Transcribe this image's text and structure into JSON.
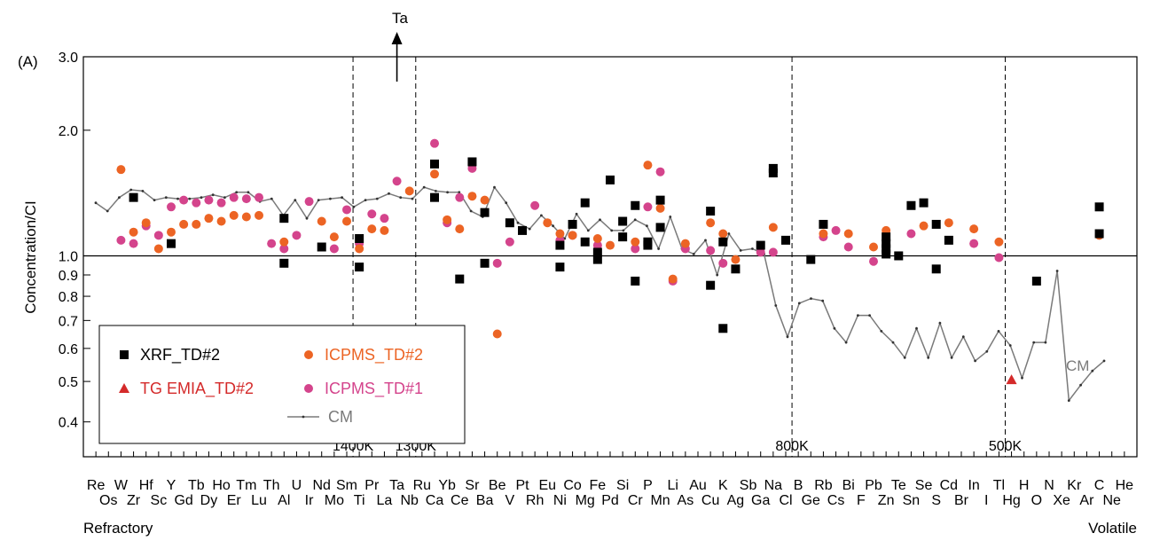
{
  "chart_data": {
    "type": "scatter",
    "panel_label": "(A)",
    "ylabel": "Concentration/CI",
    "y_scale": "log",
    "ylim": [
      0.33,
      3.0
    ],
    "y_ticks": [
      {
        "value": 3.0,
        "label": "3.0"
      },
      {
        "value": 2.0,
        "label": "2.0"
      },
      {
        "value": 1.0,
        "label": "1.0"
      },
      {
        "value": 0.9,
        "label": "0.9"
      },
      {
        "value": 0.8,
        "label": "0.8"
      },
      {
        "value": 0.7,
        "label": "0.7"
      },
      {
        "value": 0.6,
        "label": "0.6"
      },
      {
        "value": 0.5,
        "label": "0.5"
      },
      {
        "value": 0.4,
        "label": "0.4"
      }
    ],
    "reference_line": 1.0,
    "x_top_row": [
      "Re",
      "W",
      "Hf",
      "Y",
      "Tb",
      "Ho",
      "Tm",
      "Th",
      "U",
      "Nd",
      "Sm",
      "Pr",
      "Ta",
      "Ru",
      "Yb",
      "Sr",
      "Be",
      "Pt",
      "Eu",
      "Co",
      "Fe",
      "Si",
      "P",
      "Li",
      "Au",
      "K",
      "Sb",
      "Na",
      "B",
      "Rb",
      "Bi",
      "Pb",
      "Te",
      "Se",
      "Cd",
      "In",
      "Tl",
      "H",
      "N",
      "Kr",
      "C",
      "He"
    ],
    "x_bottom_row": [
      "Os",
      "Zr",
      "Sc",
      "Gd",
      "Dy",
      "Er",
      "Lu",
      "Al",
      "Ir",
      "Mo",
      "Ti",
      "La",
      "Nb",
      "Ca",
      "Ce",
      "Ba",
      "V",
      "Rh",
      "Ni",
      "Mg",
      "Pd",
      "Cr",
      "Mn",
      "As",
      "Cu",
      "Ag",
      "Ga",
      "Cl",
      "Ge",
      "Cs",
      "F",
      "Zn",
      "Sn",
      "S",
      "Br",
      "I",
      "Hg",
      "O",
      "Xe",
      "Ar",
      "Ne"
    ],
    "x_left_label": "Refractory",
    "x_right_label": "Volatile",
    "temperature_markers": [
      {
        "label": "1400K",
        "after_index": 20
      },
      {
        "label": "1300K",
        "after_index": 25
      },
      {
        "label": "800K",
        "after_index": 55
      },
      {
        "label": "500K",
        "after_index": 72
      }
    ],
    "arrow_annotation": {
      "label": "Ta",
      "element": "Ta"
    },
    "line_label": "CM",
    "legend": [
      {
        "name": "XRF_TD#2",
        "marker": "square",
        "color": "#000000"
      },
      {
        "name": "TG EMIA_TD#2",
        "marker": "triangle",
        "color": "#d42a2a"
      },
      {
        "name": "ICPMS_TD#2",
        "marker": "circle",
        "color": "#ec6424"
      },
      {
        "name": "ICPMS_TD#1",
        "marker": "circle",
        "color": "#d4448c"
      },
      {
        "name": "CM",
        "marker": "line",
        "color": "#7a7a7a"
      }
    ],
    "series": [
      {
        "name": "XRF_TD#2",
        "points": [
          [
            "Zr",
            1.38
          ],
          [
            "Y",
            1.07
          ],
          [
            "Al",
            1.23
          ],
          [
            "Al",
            0.96
          ],
          [
            "Nd",
            1.05
          ],
          [
            "Ti",
            1.1
          ],
          [
            "Ti",
            0.94
          ],
          [
            "Ca",
            1.38
          ],
          [
            "Ca",
            1.66
          ],
          [
            "Ce",
            0.88
          ],
          [
            "Sr",
            1.68
          ],
          [
            "Ba",
            1.27
          ],
          [
            "Ba",
            0.96
          ],
          [
            "V",
            1.2
          ],
          [
            "Pt",
            1.15
          ],
          [
            "Ni",
            1.06
          ],
          [
            "Ni",
            0.94
          ],
          [
            "Co",
            1.19
          ],
          [
            "Mg",
            1.08
          ],
          [
            "Mg",
            1.34
          ],
          [
            "Fe",
            1.02
          ],
          [
            "Fe",
            0.98
          ],
          [
            "Pd",
            1.52
          ],
          [
            "Si",
            1.21
          ],
          [
            "Si",
            1.11
          ],
          [
            "Cr",
            1.32
          ],
          [
            "Cr",
            0.87
          ],
          [
            "P",
            1.08
          ],
          [
            "P",
            1.06
          ],
          [
            "Mn",
            1.36
          ],
          [
            "Mn",
            1.17
          ],
          [
            "Cu",
            1.28
          ],
          [
            "Cu",
            0.85
          ],
          [
            "K",
            1.08
          ],
          [
            "K",
            0.67
          ],
          [
            "Ag",
            0.93
          ],
          [
            "Ga",
            1.06
          ],
          [
            "Na",
            1.62
          ],
          [
            "Na",
            1.58
          ],
          [
            "Cl",
            1.09
          ],
          [
            "Ge",
            0.98
          ],
          [
            "Rb",
            1.19
          ],
          [
            "Zn",
            1.11
          ],
          [
            "Zn",
            1.07
          ],
          [
            "Zn",
            1.04
          ],
          [
            "Zn",
            1.01
          ],
          [
            "Te",
            1.0
          ],
          [
            "Sn",
            1.32
          ],
          [
            "Se",
            1.34
          ],
          [
            "S",
            1.19
          ],
          [
            "S",
            0.93
          ],
          [
            "Cd",
            1.09
          ],
          [
            "O",
            0.87
          ],
          [
            "C",
            1.31
          ],
          [
            "C",
            1.13
          ]
        ]
      },
      {
        "name": "ICPMS_TD#2",
        "points": [
          [
            "W",
            1.61
          ],
          [
            "Zr",
            1.14
          ],
          [
            "Hf",
            1.2
          ],
          [
            "Sc",
            1.04
          ],
          [
            "Y",
            1.14
          ],
          [
            "Gd",
            1.19
          ],
          [
            "Tb",
            1.19
          ],
          [
            "Dy",
            1.23
          ],
          [
            "Ho",
            1.21
          ],
          [
            "Er",
            1.25
          ],
          [
            "Tm",
            1.24
          ],
          [
            "Lu",
            1.25
          ],
          [
            "Al",
            1.08
          ],
          [
            "Nd",
            1.21
          ],
          [
            "Mo",
            1.11
          ],
          [
            "Sm",
            1.21
          ],
          [
            "Ti",
            1.04
          ],
          [
            "Pr",
            1.16
          ],
          [
            "La",
            1.15
          ],
          [
            "Nb",
            1.43
          ],
          [
            "Ca",
            1.57
          ],
          [
            "Ce",
            1.16
          ],
          [
            "Yb",
            1.22
          ],
          [
            "Sr",
            1.39
          ],
          [
            "Ba",
            1.36
          ],
          [
            "Be",
            0.65
          ],
          [
            "Eu",
            1.2
          ],
          [
            "Ni",
            1.13
          ],
          [
            "Co",
            1.12
          ],
          [
            "Fe",
            1.1
          ],
          [
            "Pd",
            1.06
          ],
          [
            "Cr",
            1.08
          ],
          [
            "P",
            1.65
          ],
          [
            "Mn",
            1.3
          ],
          [
            "Li",
            0.88
          ],
          [
            "As",
            1.07
          ],
          [
            "Cu",
            1.2
          ],
          [
            "K",
            1.13
          ],
          [
            "Ag",
            0.98
          ],
          [
            "Na",
            1.17
          ],
          [
            "Rb",
            1.13
          ],
          [
            "Bi",
            1.13
          ],
          [
            "Pb",
            1.05
          ],
          [
            "Zn",
            1.15
          ],
          [
            "Se",
            1.18
          ],
          [
            "Cd",
            1.2
          ],
          [
            "In",
            1.16
          ],
          [
            "Tl",
            1.08
          ],
          [
            "C",
            1.12
          ]
        ]
      },
      {
        "name": "ICPMS_TD#1",
        "points": [
          [
            "W",
            1.09
          ],
          [
            "Zr",
            1.07
          ],
          [
            "Hf",
            1.18
          ],
          [
            "Sc",
            1.12
          ],
          [
            "Y",
            1.31
          ],
          [
            "Gd",
            1.36
          ],
          [
            "Tb",
            1.34
          ],
          [
            "Dy",
            1.36
          ],
          [
            "Ho",
            1.34
          ],
          [
            "Er",
            1.38
          ],
          [
            "Tm",
            1.37
          ],
          [
            "Lu",
            1.38
          ],
          [
            "Th",
            1.07
          ],
          [
            "Al",
            1.04
          ],
          [
            "U",
            1.12
          ],
          [
            "Ir",
            1.35
          ],
          [
            "Mo",
            1.04
          ],
          [
            "Sm",
            1.29
          ],
          [
            "Ti",
            1.07
          ],
          [
            "Pr",
            1.26
          ],
          [
            "La",
            1.23
          ],
          [
            "Ta",
            1.51
          ],
          [
            "Ca",
            1.86
          ],
          [
            "Ce",
            1.38
          ],
          [
            "Yb",
            1.2
          ],
          [
            "Sr",
            1.62
          ],
          [
            "Be",
            0.96
          ],
          [
            "V",
            1.08
          ],
          [
            "Rh",
            1.32
          ],
          [
            "Ni",
            1.09
          ],
          [
            "Co",
            1.12
          ],
          [
            "Fe",
            1.06
          ],
          [
            "Cr",
            1.04
          ],
          [
            "P",
            1.31
          ],
          [
            "Mn",
            1.59
          ],
          [
            "Li",
            0.87
          ],
          [
            "As",
            1.04
          ],
          [
            "Cu",
            1.03
          ],
          [
            "K",
            0.96
          ],
          [
            "Ga",
            1.02
          ],
          [
            "Na",
            1.02
          ],
          [
            "Rb",
            1.11
          ],
          [
            "Cs",
            1.15
          ],
          [
            "Bi",
            1.05
          ],
          [
            "Pb",
            0.97
          ],
          [
            "Sn",
            1.13
          ],
          [
            "In",
            1.07
          ],
          [
            "Tl",
            0.99
          ]
        ]
      },
      {
        "name": "TG EMIA_TD#2",
        "points": [
          [
            "Hg",
            0.505
          ]
        ]
      },
      {
        "name": "CM",
        "type": "line",
        "values": [
          1.34,
          1.28,
          1.38,
          1.44,
          1.43,
          1.36,
          1.38,
          1.37,
          1.37,
          1.38,
          1.4,
          1.38,
          1.42,
          1.42,
          1.35,
          1.37,
          1.25,
          1.36,
          1.23,
          1.36,
          1.37,
          1.38,
          1.31,
          1.36,
          1.37,
          1.41,
          1.38,
          1.37,
          1.46,
          1.43,
          1.42,
          1.42,
          1.28,
          1.24,
          1.46,
          1.34,
          1.2,
          1.16,
          1.25,
          1.18,
          1.1,
          1.26,
          1.15,
          1.22,
          1.15,
          1.15,
          1.22,
          1.18,
          1.04,
          1.24,
          1.04,
          1.01,
          1.09,
          0.9,
          1.13,
          1.03,
          1.04,
          1.01,
          0.76,
          0.64,
          0.77,
          0.79,
          0.78,
          0.67,
          0.62,
          0.72,
          0.72,
          0.66,
          0.62,
          0.57,
          0.67,
          0.57,
          0.69,
          0.57,
          0.64,
          0.56,
          0.59,
          0.66,
          0.61,
          0.51,
          0.62,
          0.62,
          0.92,
          0.45,
          0.49,
          0.53,
          0.56
        ]
      }
    ]
  }
}
